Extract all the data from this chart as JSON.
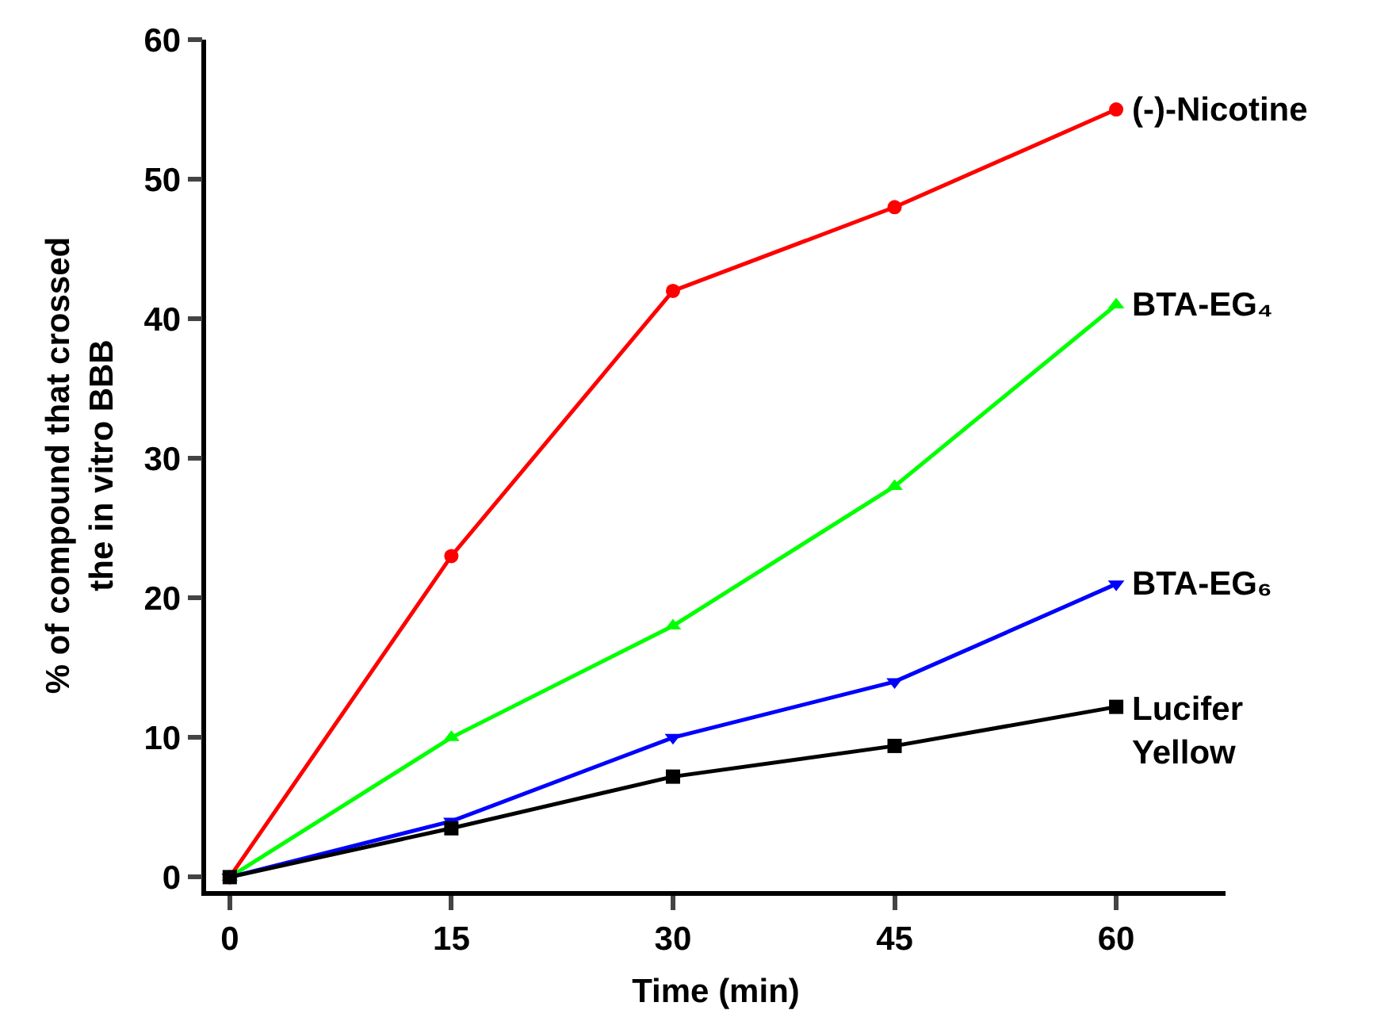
{
  "chart_data": {
    "type": "line",
    "xlabel": "Time (min)",
    "ylabel": "% of compound that crossed\nthe in vitro BBB",
    "x": [
      0,
      15,
      30,
      45,
      60
    ],
    "xlim": [
      -1.6,
      67.4
    ],
    "xticks": [
      0,
      15,
      30,
      45,
      60
    ],
    "ylim": [
      -1,
      60
    ],
    "yticks": [
      0,
      10,
      20,
      30,
      40,
      50,
      60
    ],
    "grid": false,
    "legend": false,
    "line_style": "solid",
    "series": [
      {
        "name": "(-)-Nicotine",
        "color": "#ff0000",
        "marker": "circle",
        "values": [
          0,
          23,
          42,
          48,
          55
        ]
      },
      {
        "name": "BTA-EG₄",
        "color": "#00ff00",
        "marker": "triangle",
        "values": [
          0,
          10,
          18,
          28,
          41
        ]
      },
      {
        "name": "BTA-EG₆",
        "color": "#0000ff",
        "marker": "triangle-down",
        "values": [
          0,
          4,
          10,
          14,
          21
        ]
      },
      {
        "name": "Lucifer Yellow",
        "color": "#000000",
        "marker": "square",
        "values": [
          0,
          3.5,
          7.2,
          9.4,
          12.2
        ]
      }
    ]
  }
}
